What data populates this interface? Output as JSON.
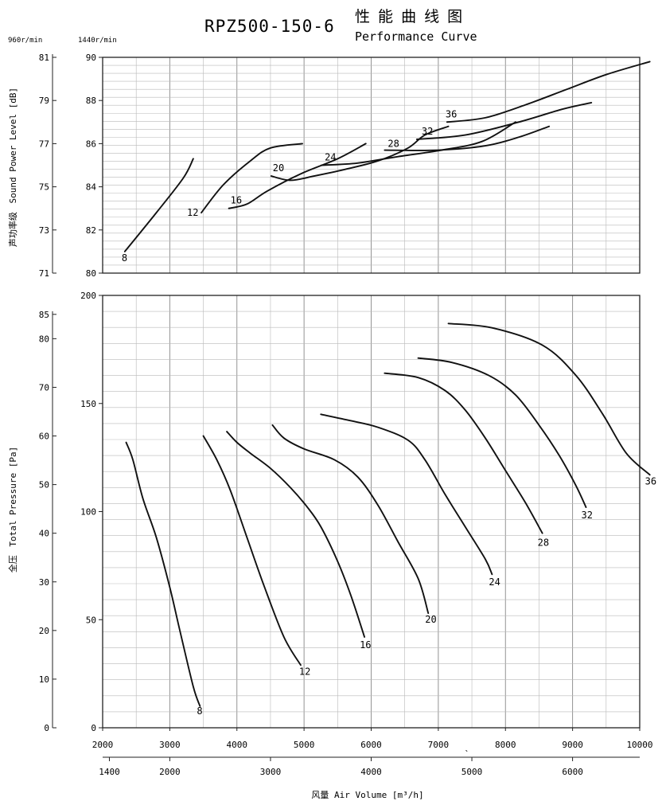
{
  "header": {
    "title": "RPZ500-150-6",
    "title_cn": "性 能 曲 线 图",
    "subtitle": "Performance Curve",
    "speed_label_a": "960r/min",
    "speed_label_b": "1440r/min"
  },
  "chart_data": [
    {
      "type": "line",
      "panel": "sound",
      "ylabel": "声功率级 Sound Power Level [dB]",
      "ylabel_cn": "声功率级",
      "ylabel_en": "Sound Power Level [dB]",
      "x_axis": {
        "label": "Air Volume [m³/h] (1440r/min)",
        "range": [
          2000,
          10000
        ],
        "ticks": [
          2000,
          3000,
          4000,
          5000,
          6000,
          7000,
          8000,
          9000,
          10000
        ]
      },
      "y_left": {
        "label": "960r/min",
        "range": [
          71,
          81
        ],
        "ticks": [
          71,
          73,
          75,
          77,
          79,
          81
        ]
      },
      "y_right": {
        "label": "1440r/min",
        "range": [
          80,
          90
        ],
        "ticks": [
          80,
          82,
          84,
          86,
          88,
          90
        ]
      },
      "series": [
        {
          "name": "8",
          "points": [
            [
              2330,
              81.0
            ],
            [
              2800,
              82.8
            ],
            [
              3200,
              84.4
            ],
            [
              3350,
              85.3
            ]
          ]
        },
        {
          "name": "12",
          "points": [
            [
              3470,
              82.8
            ],
            [
              3800,
              84.1
            ],
            [
              4200,
              85.2
            ],
            [
              4500,
              85.8
            ],
            [
              4975,
              86.0
            ]
          ]
        },
        {
          "name": "16",
          "points": [
            [
              3880,
              83.0
            ],
            [
              4150,
              83.2
            ],
            [
              4450,
              83.8
            ],
            [
              4950,
              84.6
            ],
            [
              5500,
              85.3
            ],
            [
              5920,
              86.0
            ]
          ]
        },
        {
          "name": "20",
          "points": [
            [
              4510,
              84.5
            ],
            [
              4800,
              84.3
            ],
            [
              5150,
              84.5
            ],
            [
              5600,
              84.8
            ],
            [
              6100,
              85.2
            ],
            [
              6550,
              85.8
            ],
            [
              6800,
              86.4
            ],
            [
              7150,
              86.8
            ]
          ]
        },
        {
          "name": "24",
          "points": [
            [
              5260,
              85.0
            ],
            [
              5800,
              85.1
            ],
            [
              6400,
              85.4
            ],
            [
              7050,
              85.7
            ],
            [
              7650,
              86.1
            ],
            [
              8150,
              87.0
            ]
          ]
        },
        {
          "name": "28",
          "points": [
            [
              6200,
              85.7
            ],
            [
              7000,
              85.7
            ],
            [
              7700,
              85.9
            ],
            [
              8200,
              86.3
            ],
            [
              8650,
              86.8
            ]
          ]
        },
        {
          "name": "32",
          "points": [
            [
              6680,
              86.2
            ],
            [
              7400,
              86.4
            ],
            [
              8200,
              87.0
            ],
            [
              8850,
              87.6
            ],
            [
              9280,
              87.9
            ]
          ]
        },
        {
          "name": "36",
          "points": [
            [
              7130,
              87.0
            ],
            [
              7700,
              87.2
            ],
            [
              8300,
              87.8
            ],
            [
              8900,
              88.5
            ],
            [
              9500,
              89.2
            ],
            [
              10150,
              89.8
            ]
          ]
        }
      ]
    },
    {
      "type": "line",
      "panel": "pressure",
      "ylabel": "全压 Total Pressure [Pa]",
      "ylabel_cn": "全压",
      "ylabel_en": "Total Pressure [Pa]",
      "x_axis": {
        "label": "风量 Air Volume [m³/h]",
        "range": [
          2000,
          10000
        ],
        "ticks": [
          2000,
          3000,
          4000,
          5000,
          6000,
          7000,
          8000,
          9000,
          10000
        ]
      },
      "x_axis_lower": {
        "range": [
          1333,
          6667
        ],
        "ticks": [
          1400,
          2000,
          3000,
          4000,
          5000,
          6000,
          7000
        ]
      },
      "y_left": {
        "label": "960r/min",
        "range": [
          0,
          88.9
        ],
        "ticks": [
          0,
          10,
          20,
          30,
          40,
          50,
          60,
          70,
          80,
          85
        ]
      },
      "y_right": {
        "label": "1440r/min",
        "range": [
          0,
          200
        ],
        "ticks": [
          0,
          50,
          100,
          150,
          200
        ]
      },
      "series": [
        {
          "name": "8",
          "points": [
            [
              2350,
              132
            ],
            [
              2450,
              124
            ],
            [
              2600,
              106
            ],
            [
              2800,
              88
            ],
            [
              3000,
              65
            ],
            [
              3150,
              45
            ],
            [
              3350,
              19
            ],
            [
              3450,
              10
            ]
          ]
        },
        {
          "name": "12",
          "points": [
            [
              3500,
              135
            ],
            [
              3700,
              124
            ],
            [
              3900,
              110
            ],
            [
              4150,
              88
            ],
            [
              4400,
              66
            ],
            [
              4700,
              42
            ],
            [
              4950,
              29
            ]
          ]
        },
        {
          "name": "16",
          "points": [
            [
              3850,
              137
            ],
            [
              4000,
              132
            ],
            [
              4200,
              127
            ],
            [
              4500,
              120
            ],
            [
              4800,
              111
            ],
            [
              5050,
              102
            ],
            [
              5250,
              93
            ],
            [
              5500,
              77
            ],
            [
              5700,
              61
            ],
            [
              5900,
              42
            ]
          ]
        },
        {
          "name": "20",
          "points": [
            [
              4530,
              140
            ],
            [
              4700,
              134
            ],
            [
              5000,
              129
            ],
            [
              5450,
              124
            ],
            [
              5800,
              116
            ],
            [
              6100,
              103
            ],
            [
              6400,
              86
            ],
            [
              6700,
              69
            ],
            [
              6850,
              53
            ]
          ]
        },
        {
          "name": "24",
          "points": [
            [
              5250,
              145
            ],
            [
              5700,
              142
            ],
            [
              6100,
              139
            ],
            [
              6550,
              133
            ],
            [
              6800,
              124
            ],
            [
              7100,
              108
            ],
            [
              7400,
              93
            ],
            [
              7700,
              78
            ],
            [
              7800,
              71
            ]
          ]
        },
        {
          "name": "28",
          "points": [
            [
              6200,
              164
            ],
            [
              6700,
              162
            ],
            [
              7100,
              156
            ],
            [
              7400,
              147
            ],
            [
              7700,
              134
            ],
            [
              8000,
              119
            ],
            [
              8300,
              104
            ],
            [
              8550,
              90
            ]
          ]
        },
        {
          "name": "32",
          "points": [
            [
              6700,
              171
            ],
            [
              7200,
              169
            ],
            [
              7750,
              163
            ],
            [
              8150,
              154
            ],
            [
              8500,
              140
            ],
            [
              8800,
              126
            ],
            [
              9050,
              112
            ],
            [
              9200,
              102
            ]
          ]
        },
        {
          "name": "36",
          "points": [
            [
              7150,
              187
            ],
            [
              7800,
              185
            ],
            [
              8550,
              177
            ],
            [
              9050,
              163
            ],
            [
              9450,
              145
            ],
            [
              9800,
              127
            ],
            [
              10150,
              117
            ]
          ]
        }
      ]
    }
  ],
  "x_axis_label": "风量 Air Volume [m³/h]",
  "stray_mark": "ˎ"
}
